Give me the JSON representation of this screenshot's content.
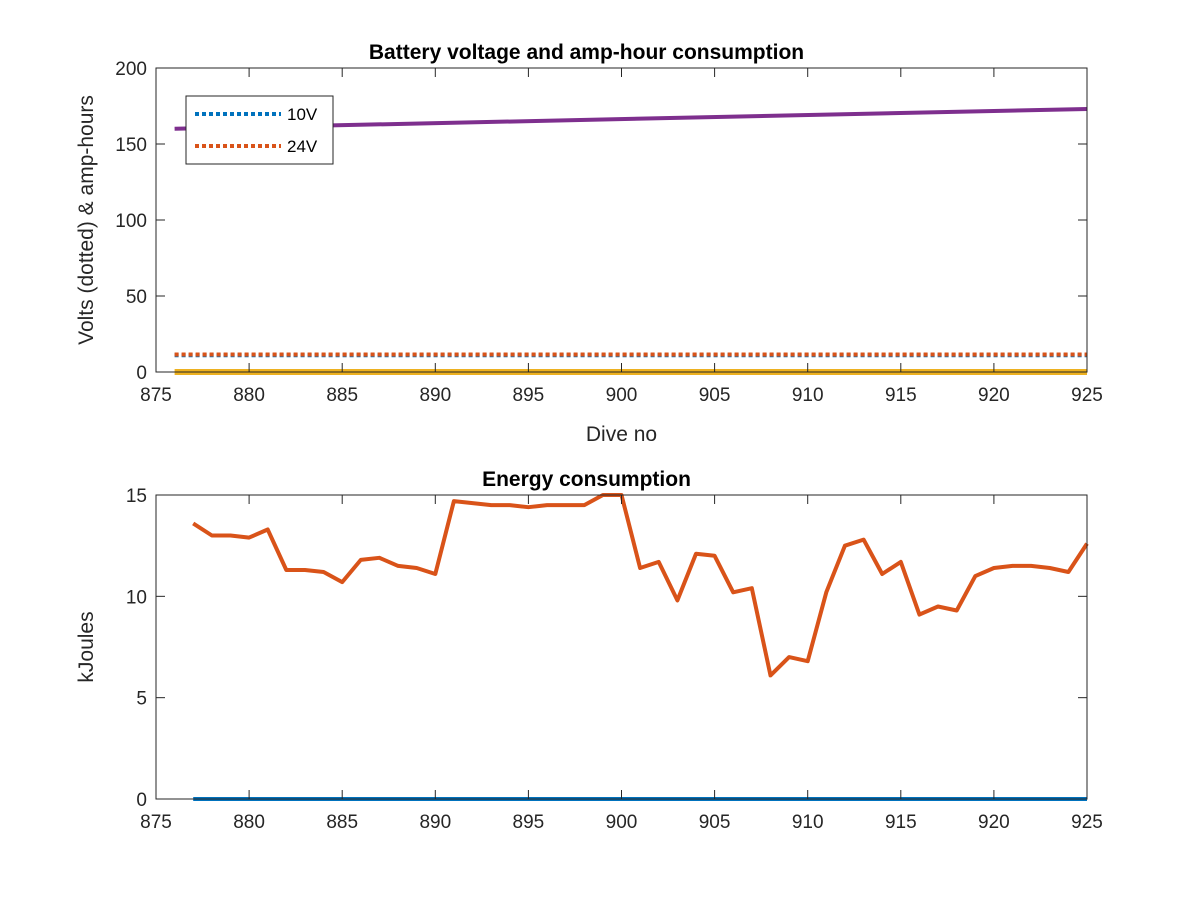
{
  "chart_data": [
    {
      "type": "line",
      "title": "Battery voltage and amp-hour consumption",
      "xlabel": "Dive no",
      "ylabel": "Volts (dotted) & amp-hours",
      "xlim": [
        875,
        925
      ],
      "ylim": [
        0,
        200
      ],
      "xticks": [
        "875",
        "880",
        "885",
        "890",
        "895",
        "900",
        "905",
        "910",
        "915",
        "920",
        "925"
      ],
      "yticks": [
        "0",
        "50",
        "100",
        "150",
        "200"
      ],
      "legend_position": "top-left",
      "grid": false,
      "series": [
        {
          "name": "10V",
          "style": "dotted",
          "color": "#0072BD",
          "x": [
            876,
            925
          ],
          "y": [
            11,
            11
          ]
        },
        {
          "name": "24V",
          "style": "dotted",
          "color": "#D95319",
          "x": [
            876,
            925
          ],
          "y": [
            11.5,
            11.5
          ]
        },
        {
          "style": "solid",
          "color": "#7E2F8E",
          "x": [
            876,
            925
          ],
          "y": [
            160,
            173
          ]
        },
        {
          "style": "solid",
          "color": "#EDB120",
          "x": [
            876,
            925
          ],
          "y": [
            0,
            0
          ]
        }
      ]
    },
    {
      "type": "line",
      "title": "Energy consumption",
      "xlabel": "",
      "ylabel": "kJoules",
      "xlim": [
        875,
        925
      ],
      "ylim": [
        0,
        15
      ],
      "xticks": [
        "875",
        "880",
        "885",
        "890",
        "895",
        "900",
        "905",
        "910",
        "915",
        "920",
        "925"
      ],
      "yticks": [
        "0",
        "5",
        "10",
        "15"
      ],
      "grid": false,
      "series": [
        {
          "style": "solid",
          "color": "#0072BD",
          "x": [
            877,
            925
          ],
          "y": [
            0,
            0
          ]
        },
        {
          "style": "solid",
          "color": "#D95319",
          "x": [
            877,
            878,
            879,
            880,
            881,
            882,
            883,
            884,
            885,
            886,
            887,
            888,
            889,
            890,
            891,
            892,
            893,
            894,
            895,
            896,
            897,
            898,
            899,
            900,
            901,
            902,
            903,
            904,
            905,
            906,
            907,
            908,
            909,
            910,
            911,
            912,
            913,
            914,
            915,
            916,
            917,
            918,
            919,
            920,
            921,
            922,
            923,
            924,
            925
          ],
          "y": [
            13.6,
            13.0,
            13.0,
            12.9,
            13.3,
            11.3,
            11.3,
            11.2,
            10.7,
            11.8,
            11.9,
            11.5,
            11.4,
            11.1,
            14.7,
            14.6,
            14.5,
            14.5,
            14.4,
            14.5,
            14.5,
            14.5,
            15.0,
            15.0,
            11.4,
            11.7,
            9.8,
            12.1,
            12.0,
            10.2,
            10.4,
            6.1,
            7.0,
            6.8,
            10.2,
            12.5,
            12.8,
            11.1,
            11.7,
            9.1,
            9.5,
            9.3,
            11.0,
            11.4,
            11.5,
            11.5,
            11.4,
            11.2,
            12.6
          ]
        }
      ]
    }
  ]
}
